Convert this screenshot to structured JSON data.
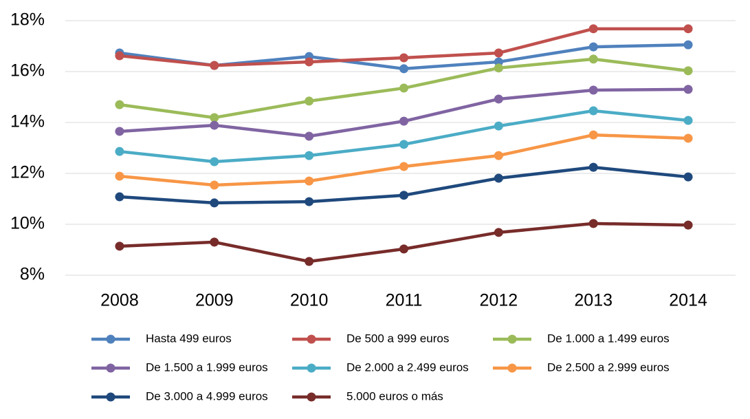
{
  "chart_data": {
    "type": "line",
    "categories": [
      "2008",
      "2009",
      "2010",
      "2011",
      "2012",
      "2013",
      "2014"
    ],
    "series": [
      {
        "name": "Hasta 499 euros",
        "color": "#4f81bd",
        "values": [
          16.73,
          16.24,
          16.59,
          16.11,
          16.38,
          16.97,
          17.05
        ]
      },
      {
        "name": "De 500 a 999 euros",
        "color": "#c0504d",
        "values": [
          16.62,
          16.24,
          16.38,
          16.54,
          16.73,
          17.68,
          17.68
        ]
      },
      {
        "name": "De 1.000 a 1.499 euros",
        "color": "#9bbb59",
        "values": [
          14.7,
          14.19,
          14.84,
          15.35,
          16.14,
          16.49,
          16.03
        ]
      },
      {
        "name": "De 1.500 a 1.999 euros",
        "color": "#8064a2",
        "values": [
          13.65,
          13.89,
          13.46,
          14.05,
          14.92,
          15.27,
          15.3
        ]
      },
      {
        "name": "De 2.000 a 2.499 euros",
        "color": "#4bacc6",
        "values": [
          12.86,
          12.46,
          12.7,
          13.14,
          13.86,
          14.46,
          14.08
        ]
      },
      {
        "name": "De 2.500 a 2.999 euros",
        "color": "#f79646",
        "values": [
          11.89,
          11.54,
          11.7,
          12.27,
          12.7,
          13.51,
          13.38
        ]
      },
      {
        "name": "De 3.000 a 4.999 euros",
        "color": "#1f497d",
        "values": [
          11.08,
          10.84,
          10.89,
          11.14,
          11.81,
          12.24,
          11.86
        ]
      },
      {
        "name": "5.000 euros o más",
        "color": "#772c2a",
        "values": [
          9.14,
          9.3,
          8.54,
          9.03,
          9.68,
          10.03,
          9.97
        ]
      }
    ],
    "ylim": [
      8,
      18
    ],
    "yticks": [
      {
        "value": 8,
        "label": "8%"
      },
      {
        "value": 10,
        "label": "10%"
      },
      {
        "value": 12,
        "label": "12%"
      },
      {
        "value": 14,
        "label": "14%"
      },
      {
        "value": 16,
        "label": "16%"
      },
      {
        "value": 18,
        "label": "18%"
      }
    ],
    "grid": true
  }
}
